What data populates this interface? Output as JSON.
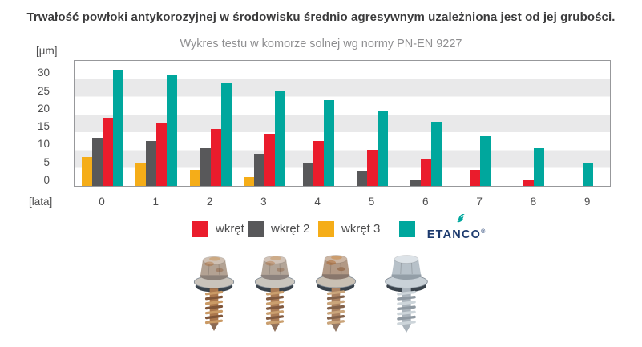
{
  "title": "Trwałość powłoki antykorozyjnej w środowisku średnio agresywnym uzależniona jest od jej grubości.",
  "subtitle": "Wykres testu w komorze solnej wg normy PN-EN 9227",
  "chart_data": {
    "type": "bar",
    "title": "Trwałość powłoki antykorozyjnej w środowisku średnio agresywnym uzależniona jest od jej grubości.",
    "subtitle": "Wykres testu w komorze solnej wg normy PN-EN 9227",
    "ylabel": "[µm]",
    "xlabel": "[lata]",
    "yticks": [
      0,
      5,
      10,
      15,
      20,
      25,
      30
    ],
    "ylim": [
      0,
      35
    ],
    "grid": "horizontal gray stripes every 5 µm",
    "legend_position": "bottom",
    "categories": [
      "0",
      "1",
      "2",
      "3",
      "4",
      "5",
      "6",
      "7",
      "8",
      "9"
    ],
    "bar_order_in_group": [
      "wkręt 3",
      "wkręt 2",
      "wkręt 1",
      "ETANCO"
    ],
    "series": [
      {
        "name": "wkręt 1",
        "color": "#ea1c2c",
        "values": [
          19,
          17.5,
          16,
          14.5,
          12.5,
          10,
          7.5,
          4.5,
          1.5,
          0
        ]
      },
      {
        "name": "wkręt 2",
        "color": "#58585a",
        "values": [
          13.5,
          12.5,
          10.5,
          9,
          6.5,
          4,
          1.5,
          0,
          0,
          0
        ]
      },
      {
        "name": "wkręt 3",
        "color": "#f5ad18",
        "values": [
          8,
          6.5,
          4.5,
          2.5,
          0,
          0,
          0,
          0,
          0,
          0
        ]
      },
      {
        "name": "ETANCO",
        "color": "#00a79d",
        "values": [
          32.5,
          31,
          29,
          26.5,
          24,
          21,
          18,
          14,
          10.5,
          6.5
        ]
      }
    ]
  },
  "legend": {
    "items": [
      {
        "label": "wkręt 1",
        "color": "#ea1c2c"
      },
      {
        "label": "wkręt 2",
        "color": "#58585a"
      },
      {
        "label": "wkręt 3",
        "color": "#f5ad18"
      },
      {
        "label": "ETANCO",
        "color": "#00a79d",
        "is_logo": true
      }
    ],
    "brand": {
      "name": "ETANCO",
      "registered": "®",
      "text_color": "#1c3a6e",
      "icon": "lightning-icon",
      "icon_color": "#00a79d"
    }
  },
  "photos": {
    "screws": [
      {
        "name": "screw-photo-1",
        "condition": "heavily corroded"
      },
      {
        "name": "screw-photo-2",
        "condition": "heavily corroded"
      },
      {
        "name": "screw-photo-3",
        "condition": "corroded"
      },
      {
        "name": "screw-photo-4",
        "condition": "clean zinc-coated"
      }
    ]
  }
}
